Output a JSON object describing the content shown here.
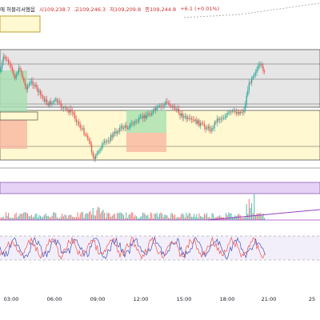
{
  "header": {
    "title": "에 허블리서엠음",
    "open": "시109,238.7",
    "high": "고109,246.3",
    "low": "저109,209.8",
    "close": "종109,244.8",
    "change": "+6.1 (+0.01%)"
  },
  "xaxis": {
    "ticks": [
      "03:00",
      "06:00",
      "09:00",
      "12:00",
      "15:00",
      "18:00",
      "21:00",
      "25"
    ]
  },
  "colors": {
    "up": "#26a69a",
    "down": "#ef5350",
    "line": "#7b3fbf",
    "box_gray": "#e5e5e5",
    "box_yellow": "#fff8d0",
    "box_purple": "#e6d2f5",
    "box_green": "#a8e0b0",
    "box_red": "#f7b7a0"
  },
  "icons": {
    "scroll": "chart-scroll-area"
  }
}
